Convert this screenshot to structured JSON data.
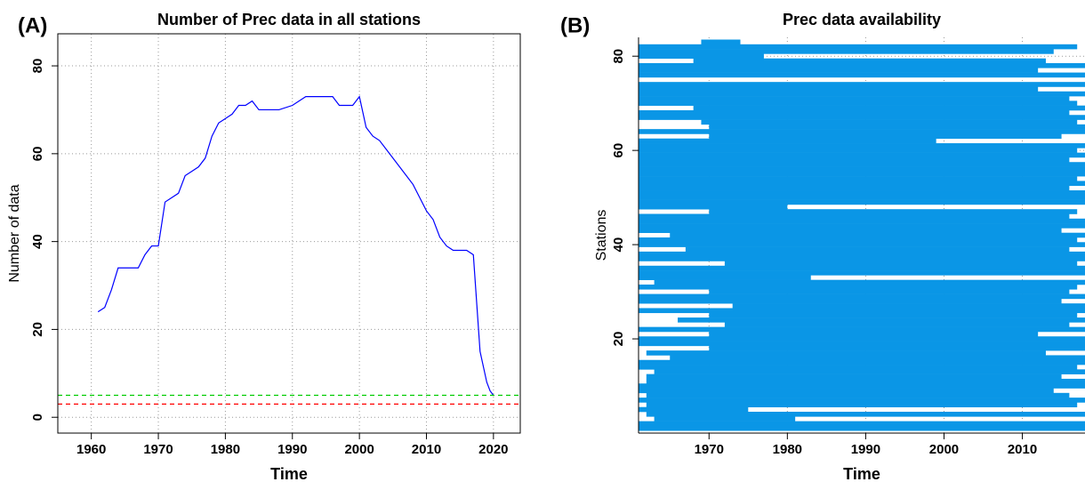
{
  "chart_data": [
    {
      "type": "line",
      "panel_label": "(A)",
      "title": "Number of Prec data in all stations",
      "x_label": "Time",
      "y_label": "Number of data",
      "x": [
        1961,
        1962,
        1963,
        1964,
        1966,
        1967,
        1968,
        1969,
        1970,
        1971,
        1972,
        1973,
        1974,
        1975,
        1976,
        1977,
        1978,
        1979,
        1980,
        1981,
        1982,
        1983,
        1984,
        1985,
        1986,
        1988,
        1990,
        1992,
        1994,
        1996,
        1997,
        1998,
        1999,
        2000,
        2001,
        2002,
        2003,
        2004,
        2005,
        2006,
        2007,
        2008,
        2009,
        2010,
        2011,
        2012,
        2013,
        2014,
        2015,
        2016,
        2017,
        2018,
        2019,
        2019.5,
        2020
      ],
      "series": [
        {
          "color": "#0000ff",
          "values": [
            24,
            25,
            29,
            34,
            34,
            34,
            37,
            39,
            39,
            49,
            50,
            51,
            55,
            56,
            57,
            59,
            64,
            67,
            68,
            69,
            71,
            71,
            72,
            70,
            70,
            70,
            71,
            73,
            73,
            73,
            71,
            71,
            71,
            73,
            66,
            64,
            63,
            61,
            59,
            57,
            55,
            53,
            50,
            47,
            45,
            41,
            39,
            38,
            38,
            38,
            37,
            15,
            8,
            6,
            5
          ]
        }
      ],
      "hlines": [
        {
          "value": 5,
          "color": "#00cc00"
        },
        {
          "value": 3,
          "color": "#ff0000"
        }
      ],
      "xlim": [
        1955,
        2024
      ],
      "ylim": [
        -3.6,
        87.3
      ],
      "xticks": [
        1960,
        1970,
        1980,
        1990,
        2000,
        2010,
        2020
      ],
      "yticks": [
        0,
        20,
        40,
        60,
        80
      ],
      "grid": true
    },
    {
      "type": "timeline",
      "panel_label": "(B)",
      "title": "Prec data availability",
      "x_label": "Time",
      "y_label": "Stations",
      "color": "#0a96e6",
      "starts": [
        1961,
        1961,
        1963,
        1962,
        1961,
        1962,
        1961,
        1962,
        1961,
        1961,
        1962,
        1962,
        1963,
        1961,
        1961,
        1965,
        1962,
        1970,
        1961,
        1961,
        1970,
        1961,
        1972,
        1966,
        1970,
        1961,
        1973,
        1961,
        1961,
        1970,
        1961,
        1963,
        1961,
        1961,
        1961,
        1972,
        1961,
        1961,
        1967,
        1961,
        1961,
        1965,
        1961,
        1961,
        1961,
        1961,
        1970,
        1961,
        1961,
        1961,
        1961,
        1961,
        1961,
        1961,
        1961,
        1961,
        1961,
        1961,
        1961,
        1961,
        1961,
        1961,
        1970,
        1961,
        1970,
        1969,
        1961,
        1961,
        1968,
        1961,
        1961,
        1961,
        1961,
        1961,
        1970,
        1961,
        1961,
        1961,
        1968,
        1961,
        1961,
        1961,
        1969
      ],
      "ends": [
        2018,
        2018,
        1981,
        2018,
        1975,
        2017,
        2018,
        2016,
        2014,
        2018,
        2018,
        2015,
        2018,
        2017,
        2018,
        2018,
        2013,
        2018,
        2018,
        2018,
        2012,
        2018,
        2016,
        2018,
        2017,
        2018,
        2018,
        2015,
        2018,
        2016,
        2017,
        2018,
        1983,
        2018,
        2018,
        2017,
        2018,
        2018,
        2016,
        2018,
        2017,
        2018,
        2015,
        2018,
        2018,
        2016,
        2017,
        1980,
        2018,
        2018,
        2018,
        2016,
        2018,
        2017,
        2018,
        2018,
        2018,
        2016,
        2018,
        2017,
        2018,
        1999,
        2015,
        2018,
        2018,
        2017,
        2018,
        2016,
        2018,
        2017,
        2016,
        2018,
        2012,
        2018,
        1970,
        2018,
        2012,
        2018,
        2013,
        1977,
        2014,
        2017,
        1974
      ],
      "xlim": [
        1961,
        2018
      ],
      "ylim": [
        0,
        84
      ],
      "xticks": [
        1970,
        1980,
        1990,
        2000,
        2010
      ],
      "yticks": [
        20,
        40,
        60,
        80
      ],
      "grid": true
    }
  ]
}
